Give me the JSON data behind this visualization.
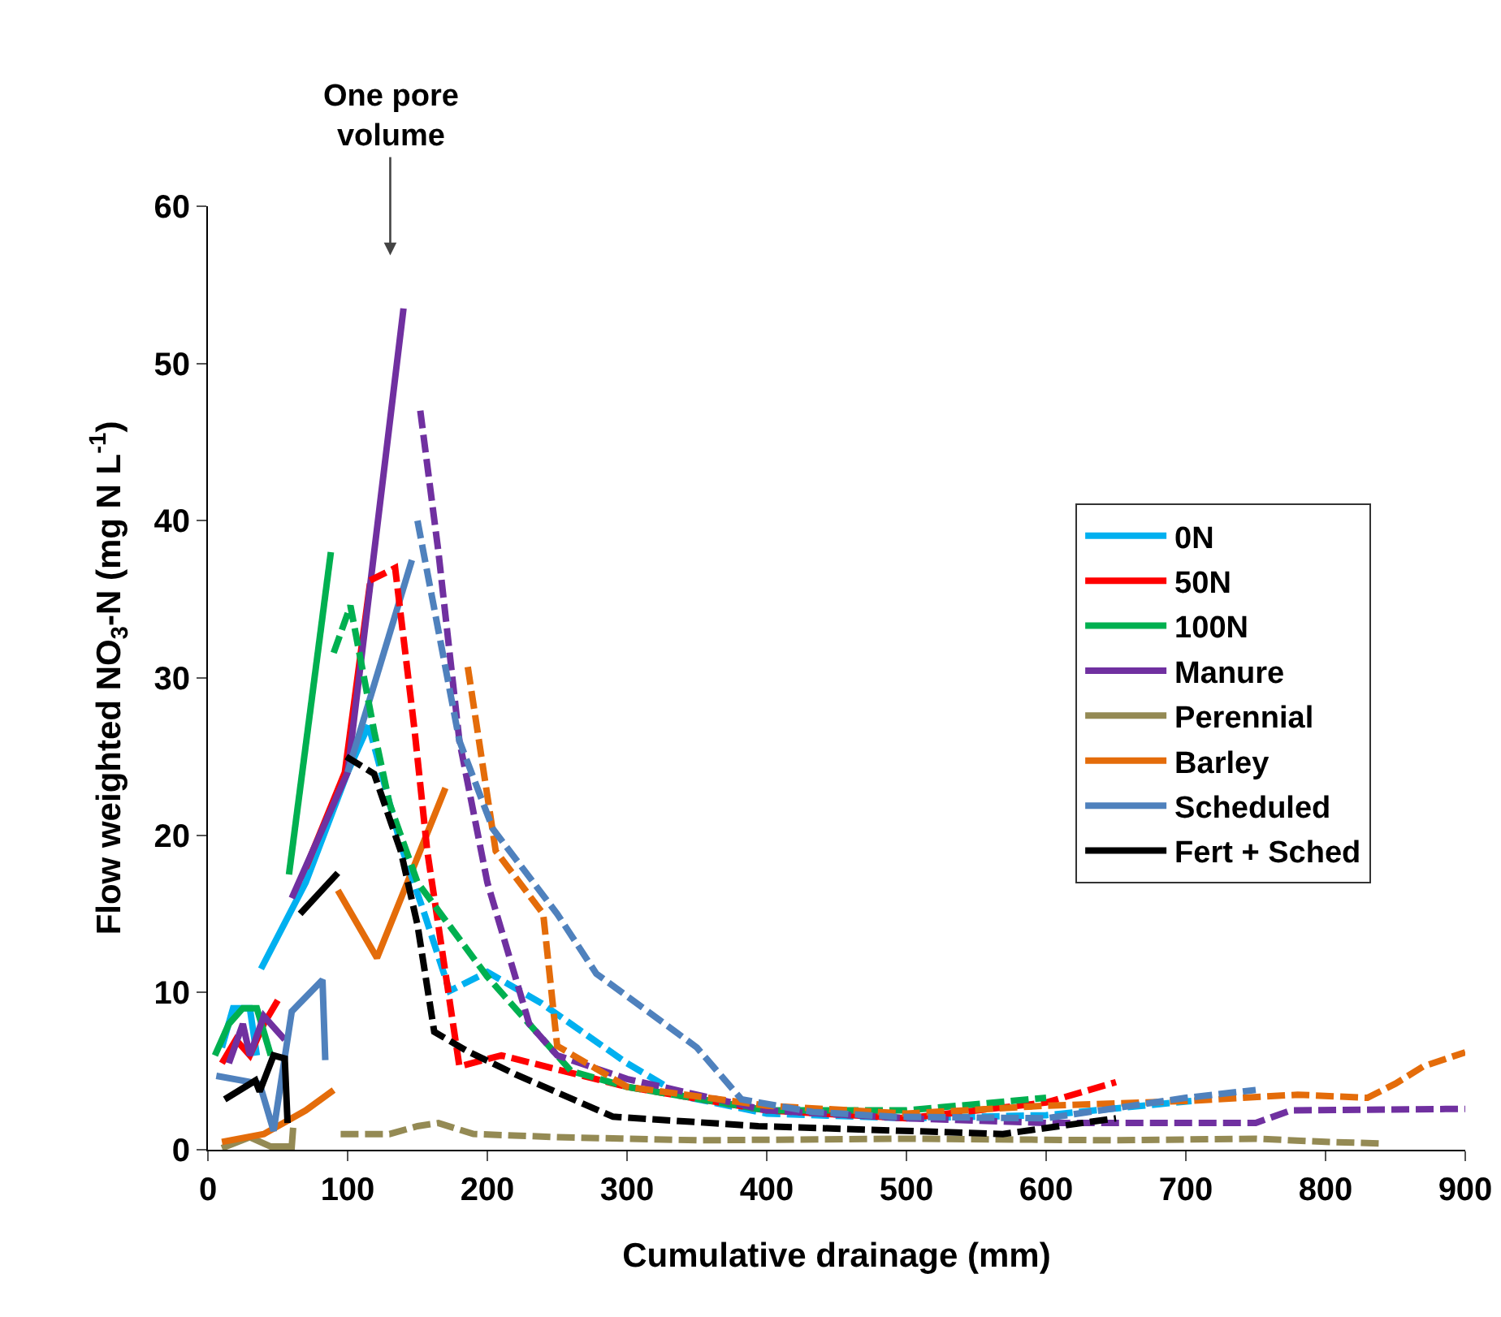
{
  "chart_data": {
    "type": "line",
    "xlabel": "Cumulative drainage (mm)",
    "ylabel": "Flow weighted NO$_{3}$-N (mg N L$^{-1}$)",
    "xlim": [
      0,
      900
    ],
    "xticks": [
      0,
      100,
      200,
      300,
      400,
      500,
      600,
      700,
      800,
      900
    ],
    "ylim": [
      0,
      60
    ],
    "yticks": [
      0,
      10,
      20,
      30,
      40,
      50,
      60
    ],
    "grid": false,
    "legend": "right",
    "line_style": "solid",
    "annotations": [
      "One pore\nvolume"
    ],
    "series": [
      {
        "name": "0N",
        "color": "#00b0f0",
        "x": [
          10,
          18,
          30,
          35,
          36,
          38,
          70,
          100,
          115
        ],
        "values": [
          6.5,
          9,
          9,
          6,
          null,
          11.5,
          17,
          24,
          27
        ]
      },
      {
        "name": "50N",
        "color": "#ff0000",
        "x": [
          10,
          20,
          30,
          40,
          50,
          60,
          70,
          98,
          116
        ],
        "values": [
          5.5,
          7,
          6,
          8,
          9.5,
          null,
          17.9,
          24,
          36
        ]
      },
      {
        "name": "100N",
        "color": "#00b050",
        "x": [
          5,
          15,
          25,
          35,
          45,
          52,
          58,
          88
        ],
        "values": [
          6,
          8,
          9,
          9,
          6,
          null,
          17.5,
          38
        ]
      },
      {
        "name": "Manure",
        "color": "#7030a0",
        "x": [
          15,
          25,
          30,
          40,
          55,
          58,
          60,
          100,
          140
        ],
        "values": [
          5.5,
          8,
          6,
          8.5,
          7,
          null,
          16,
          24,
          53.5
        ]
      },
      {
        "name": "Perennial",
        "color": "#948a54",
        "x": [
          10,
          30,
          45,
          60,
          61
        ],
        "values": [
          0.1,
          0.8,
          0.2,
          0.2,
          1.4
        ]
      },
      {
        "name": "Barley",
        "color": "#e46c0a",
        "x": [
          10,
          40,
          70,
          90,
          92,
          93,
          121,
          170
        ],
        "values": [
          0.5,
          1,
          2.5,
          3.8,
          null,
          16.5,
          12.2,
          23
        ]
      },
      {
        "name": "Scheduled",
        "color": "#4f81bd",
        "x": [
          6,
          37,
          47,
          60,
          82,
          84,
          92,
          100,
          146
        ],
        "values": [
          4.7,
          4.2,
          1.2,
          8.8,
          10.8,
          5.7,
          null,
          24,
          37.5
        ]
      },
      {
        "name": "Fert + Sched",
        "color": "#000000",
        "x": [
          12,
          34,
          37,
          47,
          55,
          57,
          62,
          66,
          93
        ],
        "values": [
          3.2,
          4.4,
          3.7,
          6,
          5.8,
          1.7,
          null,
          15,
          17.6
        ]
      },
      {
        "color": "#00b0f0",
        "line_style": "dashed",
        "x": [
          115,
          138,
          155,
          173,
          200,
          239,
          300,
          340,
          400,
          500,
          600,
          704
        ],
        "values": [
          27,
          19.4,
          15,
          10.1,
          11.3,
          9.3,
          5.5,
          3.4,
          2.3,
          2,
          2.2,
          3.1
        ]
      },
      {
        "color": "#ff0000",
        "line_style": "dashed",
        "x": [
          116,
          134,
          148,
          157,
          180,
          210,
          300,
          400,
          500,
          600,
          650
        ],
        "values": [
          36.2,
          37,
          26.6,
          19,
          5.3,
          6,
          4,
          2.5,
          2,
          3,
          4.3
        ]
      },
      {
        "color": "#00b050",
        "line_style": "dashed",
        "x": [
          90,
          102,
          119,
          130,
          150,
          175,
          200,
          240,
          260,
          300,
          400,
          500,
          600
        ],
        "values": [
          31.6,
          34.6,
          26.6,
          22,
          17,
          14,
          11,
          7,
          5,
          4,
          2.5,
          2.5,
          3.3
        ]
      },
      {
        "color": "#7030a0",
        "line_style": "dashed",
        "x": [
          152,
          165,
          180,
          200,
          230,
          250,
          300,
          400,
          500,
          600,
          700,
          750,
          775,
          900
        ],
        "values": [
          47,
          38,
          26,
          17,
          8,
          6,
          4.5,
          2.5,
          2,
          1.7,
          1.7,
          1.7,
          2.5,
          2.6
        ]
      },
      {
        "color": "#948a54",
        "line_style": "dashed",
        "x": [
          95,
          130,
          150,
          165,
          190,
          250,
          350,
          500,
          650,
          750,
          800,
          840
        ],
        "values": [
          1,
          1,
          1.5,
          1.7,
          1,
          0.8,
          0.6,
          0.7,
          0.6,
          0.7,
          0.5,
          0.4
        ]
      },
      {
        "color": "#e46c0a",
        "line_style": "dashed",
        "x": [
          186,
          206,
          240,
          250,
          300,
          400,
          500,
          600,
          700,
          780,
          830,
          850,
          870,
          900
        ],
        "values": [
          30.7,
          19,
          15,
          6.6,
          4,
          2.8,
          2.3,
          2.8,
          3.1,
          3.5,
          3.3,
          4.2,
          5.3,
          6.2
        ]
      },
      {
        "color": "#4f81bd",
        "line_style": "dashed",
        "x": [
          150,
          165,
          180,
          204,
          250,
          278,
          350,
          382,
          433,
          490,
          600,
          700,
          750
        ],
        "values": [
          40,
          33,
          26,
          20.4,
          15,
          11.2,
          6.5,
          3.2,
          2.4,
          2.1,
          2,
          3.3,
          3.8
        ]
      },
      {
        "color": "#000000",
        "line_style": "dashed",
        "x": [
          99,
          119,
          138,
          150,
          162,
          185,
          220,
          290,
          394,
          569,
          650
        ],
        "values": [
          25,
          23.9,
          19,
          14.3,
          7.5,
          6.3,
          4.8,
          2.1,
          1.5,
          1,
          2
        ]
      }
    ]
  }
}
